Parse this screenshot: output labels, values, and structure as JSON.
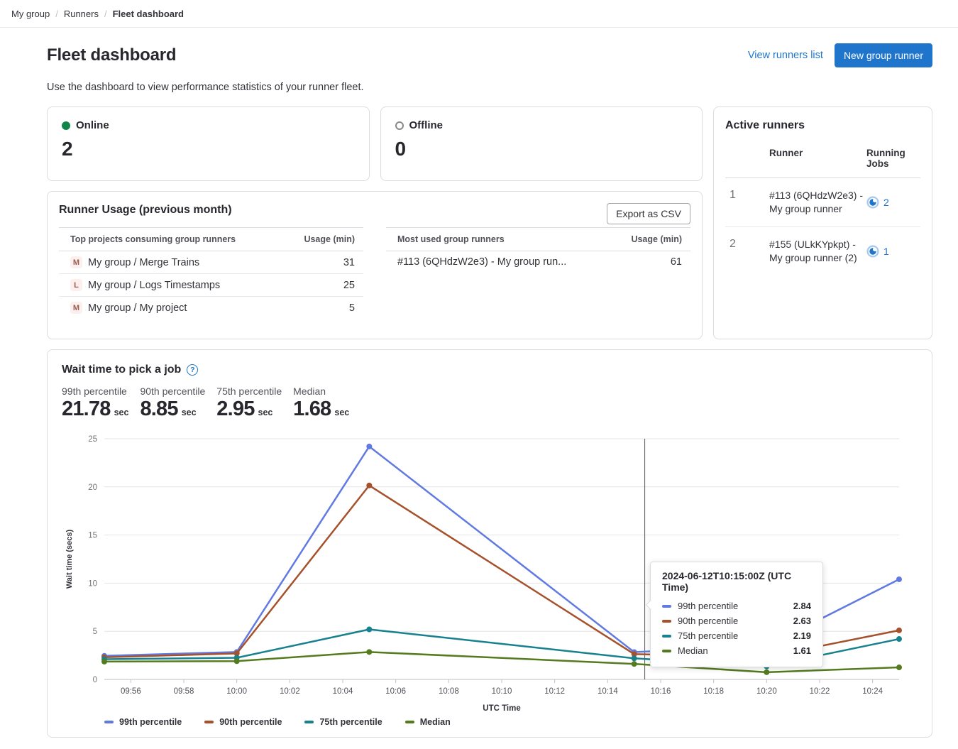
{
  "breadcrumb": {
    "items": [
      "My group",
      "Runners"
    ],
    "current": "Fleet dashboard",
    "separator": "/"
  },
  "header": {
    "title": "Fleet dashboard",
    "view_runners_link": "View runners list",
    "new_runner_button": "New group runner",
    "description": "Use the dashboard to view performance statistics of your runner fleet."
  },
  "status_cards": {
    "online": {
      "label": "Online",
      "value": "2"
    },
    "offline": {
      "label": "Offline",
      "value": "0"
    }
  },
  "active_runners": {
    "title": "Active runners",
    "col_runner": "Runner",
    "col_jobs": "Running Jobs",
    "rows": [
      {
        "index": "1",
        "runner": "#113 (6QHdzW2e3) - My group runner",
        "jobs": "2"
      },
      {
        "index": "2",
        "runner": "#155 (ULkKYpkpt) - My group runner (2)",
        "jobs": "1"
      }
    ]
  },
  "runner_usage": {
    "title": "Runner Usage (previous month)",
    "export_button": "Export as CSV",
    "projects_table": {
      "col_name": "Top projects consuming group runners",
      "col_usage": "Usage (min)",
      "rows": [
        {
          "avatar": "M",
          "name": "My group / Merge Trains",
          "usage": "31"
        },
        {
          "avatar": "L",
          "name": "My group / Logs Timestamps",
          "usage": "25"
        },
        {
          "avatar": "M",
          "name": "My group / My project",
          "usage": "5"
        }
      ]
    },
    "runners_table": {
      "col_name": "Most used group runners",
      "col_usage": "Usage (min)",
      "rows": [
        {
          "name": "#113 (6QHdzW2e3) - My group run...",
          "usage": "61"
        }
      ]
    }
  },
  "wait_time": {
    "title": "Wait time to pick a job",
    "stats": [
      {
        "label": "99th percentile",
        "value": "21.78",
        "unit": "sec"
      },
      {
        "label": "90th percentile",
        "value": "8.85",
        "unit": "sec"
      },
      {
        "label": "75th percentile",
        "value": "2.95",
        "unit": "sec"
      },
      {
        "label": "Median",
        "value": "1.68",
        "unit": "sec"
      }
    ]
  },
  "chart_data": {
    "type": "line",
    "title": "Wait time to pick a job",
    "xlabel": "UTC Time",
    "ylabel": "Wait time (secs)",
    "x_times": [
      "09:55",
      "10:00",
      "10:05",
      "10:15",
      "10:20",
      "10:25"
    ],
    "x_minutes": [
      0,
      5,
      10,
      20,
      25,
      30
    ],
    "x_domain_minutes": [
      0,
      30
    ],
    "x_ticks": [
      {
        "minute": 1,
        "label": "09:56"
      },
      {
        "minute": 3,
        "label": "09:58"
      },
      {
        "minute": 5,
        "label": "10:00"
      },
      {
        "minute": 7,
        "label": "10:02"
      },
      {
        "minute": 9,
        "label": "10:04"
      },
      {
        "minute": 11,
        "label": "10:06"
      },
      {
        "minute": 13,
        "label": "10:08"
      },
      {
        "minute": 15,
        "label": "10:10"
      },
      {
        "minute": 17,
        "label": "10:12"
      },
      {
        "minute": 19,
        "label": "10:14"
      },
      {
        "minute": 21,
        "label": "10:16"
      },
      {
        "minute": 23,
        "label": "10:18"
      },
      {
        "minute": 25,
        "label": "10:20"
      },
      {
        "minute": 27,
        "label": "10:22"
      },
      {
        "minute": 29,
        "label": "10:24"
      }
    ],
    "ylim": [
      0,
      25
    ],
    "y_ticks": [
      0,
      5,
      10,
      15,
      20,
      25
    ],
    "grid": true,
    "legend_position": "bottom",
    "series": [
      {
        "name": "99th percentile",
        "color": "#617ae2",
        "values": [
          2.45,
          2.85,
          24.2,
          2.84,
          3.45,
          10.4
        ]
      },
      {
        "name": "90th percentile",
        "color": "#a5512c",
        "values": [
          2.3,
          2.7,
          20.15,
          2.63,
          2.35,
          5.1
        ]
      },
      {
        "name": "75th percentile",
        "color": "#17818e",
        "values": [
          2.1,
          2.25,
          5.2,
          2.19,
          1.35,
          4.2
        ]
      },
      {
        "name": "Median",
        "color": "#547b1e",
        "values": [
          1.85,
          1.9,
          2.85,
          1.61,
          0.75,
          1.25
        ]
      }
    ],
    "crosshair_minute": 20.4,
    "tooltip": {
      "title": "2024-06-12T10:15:00Z (UTC Time)",
      "rows": [
        {
          "name": "99th percentile",
          "color": "#617ae2",
          "value": "2.84"
        },
        {
          "name": "90th percentile",
          "color": "#a5512c",
          "value": "2.63"
        },
        {
          "name": "75th percentile",
          "color": "#17818e",
          "value": "2.19"
        },
        {
          "name": "Median",
          "color": "#547b1e",
          "value": "1.61"
        }
      ]
    }
  },
  "colors": {
    "primary": "#1f75cb",
    "online_dot": "#108548",
    "offline_ring": "#89888d",
    "avatar_bg": "#fbf0ee",
    "avatar_text": "#9c5e52",
    "running_icon_ring": "#a7c9ef",
    "running_icon_fill": "#1f75cb"
  }
}
